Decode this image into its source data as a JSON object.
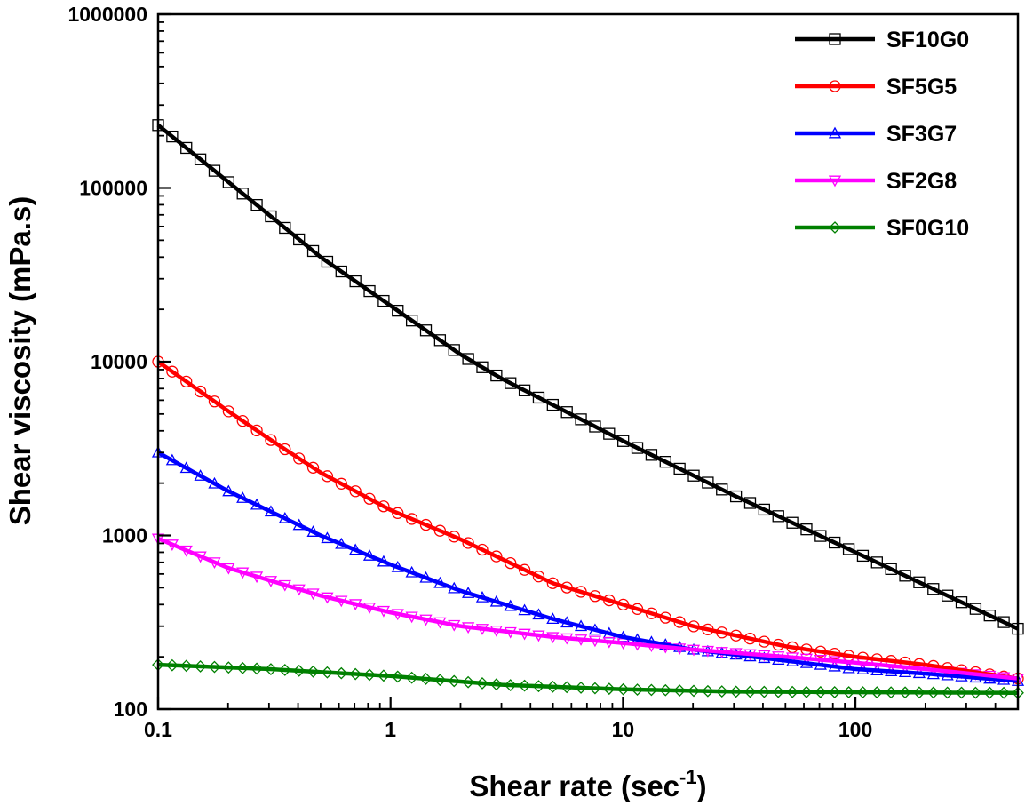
{
  "chart_data": {
    "type": "line",
    "scale": {
      "x": "log",
      "y": "log"
    },
    "xlim": [
      0.1,
      500
    ],
    "ylim": [
      100,
      1000000
    ],
    "xlabel": "Shear rate (sec",
    "xlabel_superscript": "-1",
    "xlabel_suffix": ")",
    "ylabel": "Shear viscosity (mPa.s)",
    "x_ticks": [
      {
        "value": 0.1,
        "label": "0.1"
      },
      {
        "value": 1,
        "label": "1"
      },
      {
        "value": 10,
        "label": "10"
      },
      {
        "value": 100,
        "label": "100"
      }
    ],
    "y_ticks": [
      {
        "value": 100,
        "label": "100"
      },
      {
        "value": 1000,
        "label": "1000"
      },
      {
        "value": 10000,
        "label": "10000"
      },
      {
        "value": 100000,
        "label": "100000"
      },
      {
        "value": 1000000,
        "label": "1000000"
      }
    ],
    "legend_position": "top-right",
    "series": [
      {
        "name": "SF10G0",
        "color": "#000000",
        "marker": "square",
        "points": [
          [
            0.1,
            230000
          ],
          [
            0.3,
            70000
          ],
          [
            0.5,
            40000
          ],
          [
            1,
            21000
          ],
          [
            2,
            11000
          ],
          [
            3,
            8000
          ],
          [
            10,
            3500
          ],
          [
            30,
            1700
          ],
          [
            100,
            800
          ],
          [
            500,
            290
          ]
        ]
      },
      {
        "name": "SF5G5",
        "color": "#ff0000",
        "marker": "circle",
        "points": [
          [
            0.1,
            10000
          ],
          [
            0.2,
            5200
          ],
          [
            0.3,
            3600
          ],
          [
            0.5,
            2300
          ],
          [
            1,
            1400
          ],
          [
            2,
            950
          ],
          [
            5,
            530
          ],
          [
            10,
            400
          ],
          [
            20,
            300
          ],
          [
            50,
            230
          ],
          [
            100,
            200
          ],
          [
            200,
            180
          ],
          [
            500,
            150
          ]
        ]
      },
      {
        "name": "SF3G7",
        "color": "#0000ff",
        "marker": "triangle-up",
        "points": [
          [
            0.1,
            3000
          ],
          [
            0.2,
            1800
          ],
          [
            0.5,
            1000
          ],
          [
            1,
            680
          ],
          [
            2,
            480
          ],
          [
            5,
            330
          ],
          [
            10,
            260
          ],
          [
            20,
            220
          ],
          [
            50,
            190
          ],
          [
            100,
            170
          ],
          [
            200,
            160
          ],
          [
            500,
            145
          ]
        ]
      },
      {
        "name": "SF2G8",
        "color": "#ff00ff",
        "marker": "triangle-down",
        "points": [
          [
            0.1,
            960
          ],
          [
            0.2,
            650
          ],
          [
            0.5,
            450
          ],
          [
            1,
            360
          ],
          [
            2,
            300
          ],
          [
            5,
            260
          ],
          [
            10,
            240
          ],
          [
            20,
            220
          ],
          [
            50,
            200
          ],
          [
            100,
            185
          ],
          [
            200,
            170
          ],
          [
            500,
            150
          ]
        ]
      },
      {
        "name": "SF0G10",
        "color": "#008000",
        "marker": "diamond",
        "points": [
          [
            0.1,
            180
          ],
          [
            0.3,
            170
          ],
          [
            1,
            155
          ],
          [
            3,
            138
          ],
          [
            10,
            130
          ],
          [
            30,
            126
          ],
          [
            100,
            125
          ],
          [
            500,
            124
          ]
        ]
      }
    ]
  }
}
